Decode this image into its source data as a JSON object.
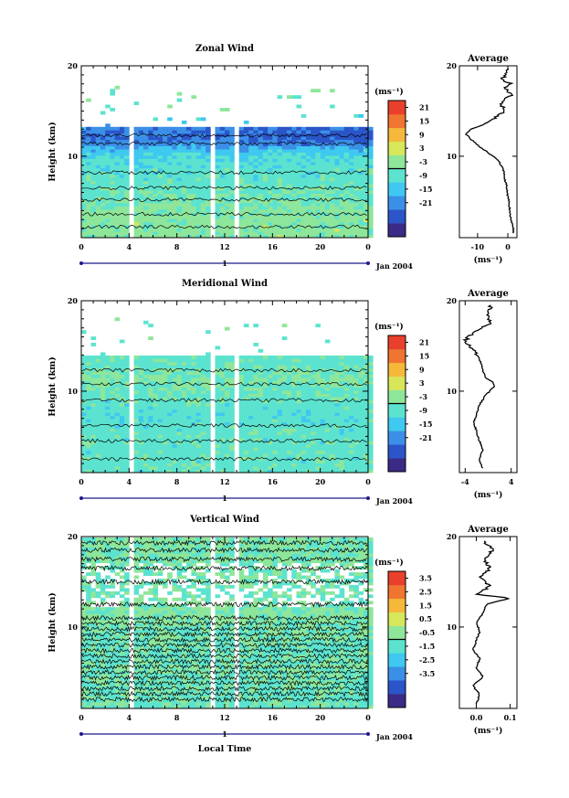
{
  "chart_data": [
    {
      "type": "heatmap",
      "title": "Zonal Wind",
      "ylabel": "Height (km)",
      "xticks": [
        "0",
        "4",
        "8",
        "12",
        "16",
        "20",
        "0"
      ],
      "yticks": [
        "20",
        "10"
      ],
      "ylim": [
        1,
        20
      ],
      "xlim": [
        0,
        24
      ],
      "date_marker": "1",
      "date_label": "Jan 2004",
      "colorbar": {
        "unit": "(ms⁻¹)",
        "ticks": [
          "21",
          "15",
          "9",
          "3",
          "-3",
          "-9",
          "-15",
          "-21"
        ],
        "range": [
          -24,
          24
        ]
      },
      "data_gaps_hours": [
        4.2,
        11.0,
        12.9
      ],
      "profile_by_height": [
        {
          "h": 3,
          "v": 2
        },
        {
          "h": 5,
          "v": 0
        },
        {
          "h": 7,
          "v": -2
        },
        {
          "h": 9,
          "v": -3
        },
        {
          "h": 10,
          "v": -5
        },
        {
          "h": 11,
          "v": -10
        },
        {
          "h": 12,
          "v": -14
        },
        {
          "h": 13,
          "v": -12
        },
        {
          "h": 14,
          "v": -4
        },
        {
          "h": 15,
          "v": 0
        },
        {
          "h": 17,
          "v": 0
        },
        {
          "h": 18,
          "v": -2
        },
        {
          "h": 19,
          "v": 0
        }
      ],
      "average": {
        "title": "Average",
        "xticks": [
          "-10",
          "0"
        ],
        "xunit": "(ms⁻¹)",
        "yticks": [
          "20",
          "10"
        ],
        "xlim": [
          -16,
          3
        ],
        "profile": [
          {
            "h": 1.5,
            "v": 2.0
          },
          {
            "h": 2.5,
            "v": 1.5
          },
          {
            "h": 3.5,
            "v": 0.8
          },
          {
            "h": 4.5,
            "v": 0.5
          },
          {
            "h": 5.5,
            "v": 0.0
          },
          {
            "h": 6.5,
            "v": -0.3
          },
          {
            "h": 7.5,
            "v": -1.0
          },
          {
            "h": 8.5,
            "v": -1.5
          },
          {
            "h": 9.5,
            "v": -3.0
          },
          {
            "h": 10.5,
            "v": -7.0
          },
          {
            "h": 11.5,
            "v": -11.0
          },
          {
            "h": 12.5,
            "v": -14.0
          },
          {
            "h": 13.0,
            "v": -12.0
          },
          {
            "h": 13.5,
            "v": -8.0
          },
          {
            "h": 14.5,
            "v": -3.0
          },
          {
            "h": 15.0,
            "v": -1.0
          },
          {
            "h": 16.0,
            "v": -2.5
          },
          {
            "h": 16.8,
            "v": 1.5
          },
          {
            "h": 17.5,
            "v": -1.0
          },
          {
            "h": 18.0,
            "v": 1.0
          },
          {
            "h": 18.5,
            "v": -2.0
          },
          {
            "h": 19.2,
            "v": -0.5
          },
          {
            "h": 19.8,
            "v": 0.5
          }
        ]
      }
    },
    {
      "type": "heatmap",
      "title": "Meridional Wind",
      "ylabel": "Height (km)",
      "xticks": [
        "0",
        "4",
        "8",
        "12",
        "16",
        "20",
        "0"
      ],
      "yticks": [
        "20",
        "10"
      ],
      "ylim": [
        1,
        20
      ],
      "xlim": [
        0,
        24
      ],
      "date_marker": "1",
      "date_label": "Jan 2004",
      "colorbar": {
        "unit": "(ms⁻¹)",
        "ticks": [
          "21",
          "15",
          "9",
          "3",
          "-3",
          "-9",
          "-15",
          "-21"
        ],
        "range": [
          -24,
          24
        ]
      },
      "data_gaps_hours": [
        4.2,
        11.0,
        12.9
      ],
      "profile_by_height": [
        {
          "h": 3,
          "v": -2
        },
        {
          "h": 5,
          "v": -2
        },
        {
          "h": 7,
          "v": -3
        },
        {
          "h": 9,
          "v": -2
        },
        {
          "h": 10,
          "v": -1
        },
        {
          "h": 11,
          "v": 1
        },
        {
          "h": 12,
          "v": -1
        },
        {
          "h": 13,
          "v": -2
        },
        {
          "h": 14,
          "v": -2
        },
        {
          "h": 15,
          "v": -3
        },
        {
          "h": 17,
          "v": 0
        },
        {
          "h": 18,
          "v": -1
        },
        {
          "h": 19,
          "v": 0
        }
      ],
      "average": {
        "title": "Average",
        "xticks": [
          "-4",
          "4"
        ],
        "xunit": "(ms⁻¹)",
        "yticks": [
          "20",
          "10"
        ],
        "xlim": [
          -5,
          5
        ],
        "profile": [
          {
            "h": 1.5,
            "v": -1.0
          },
          {
            "h": 2.5,
            "v": -1.5
          },
          {
            "h": 3.5,
            "v": -1.0
          },
          {
            "h": 4.5,
            "v": -1.5
          },
          {
            "h": 5.5,
            "v": -2.0
          },
          {
            "h": 6.5,
            "v": -2.5
          },
          {
            "h": 7.5,
            "v": -2.0
          },
          {
            "h": 8.5,
            "v": -1.5
          },
          {
            "h": 9.5,
            "v": -0.5
          },
          {
            "h": 10.5,
            "v": 1.0
          },
          {
            "h": 11.0,
            "v": 0.8
          },
          {
            "h": 11.5,
            "v": -0.5
          },
          {
            "h": 12.5,
            "v": -1.0
          },
          {
            "h": 13.5,
            "v": -1.5
          },
          {
            "h": 14.5,
            "v": -2.5
          },
          {
            "h": 15.0,
            "v": -3.0
          },
          {
            "h": 15.5,
            "v": -4.0
          },
          {
            "h": 16.0,
            "v": -3.5
          },
          {
            "h": 17.0,
            "v": -1.0
          },
          {
            "h": 17.5,
            "v": 0.5
          },
          {
            "h": 18.5,
            "v": 0.0
          },
          {
            "h": 19.5,
            "v": 0.5
          }
        ]
      }
    },
    {
      "type": "heatmap",
      "title": "Vertical Wind",
      "ylabel": "Height (km)",
      "xlabel": "Local Time",
      "xticks": [
        "0",
        "4",
        "8",
        "12",
        "16",
        "20",
        "0"
      ],
      "yticks": [
        "20",
        "10"
      ],
      "ylim": [
        1,
        20
      ],
      "xlim": [
        0,
        24
      ],
      "date_marker": "1",
      "date_label": "Jan 2004",
      "colorbar": {
        "unit": "(ms⁻¹)",
        "ticks": [
          "3.5",
          "2.5",
          "1.5",
          "0.5",
          "-0.5",
          "-1.5",
          "-2.5",
          "-3.5"
        ],
        "range": [
          -4,
          4
        ]
      },
      "data_gaps_hours": [
        4.2,
        11.0,
        12.9
      ],
      "profile_by_height": [
        {
          "h": 3,
          "v": -0.2
        },
        {
          "h": 5,
          "v": 0
        },
        {
          "h": 7,
          "v": -0.2
        },
        {
          "h": 9,
          "v": 0
        },
        {
          "h": 10,
          "v": 0.1
        },
        {
          "h": 11,
          "v": 0.2
        },
        {
          "h": 12,
          "v": 0.1
        },
        {
          "h": 13,
          "v": 0
        },
        {
          "h": 14,
          "v": -0.1
        },
        {
          "h": 15,
          "v": 0
        },
        {
          "h": 17,
          "v": 0.1
        },
        {
          "h": 18,
          "v": 0
        },
        {
          "h": 19,
          "v": 0.1
        }
      ],
      "average": {
        "title": "Average",
        "xticks": [
          "0.0",
          "0.1"
        ],
        "xunit": "(ms⁻¹)",
        "yticks": [
          "20",
          "10"
        ],
        "xlim": [
          -0.05,
          0.12
        ],
        "profile": [
          {
            "h": 1.5,
            "v": 0.0
          },
          {
            "h": 2.5,
            "v": 0.01
          },
          {
            "h": 3.5,
            "v": -0.01
          },
          {
            "h": 4.5,
            "v": 0.02
          },
          {
            "h": 5.5,
            "v": 0.0
          },
          {
            "h": 6.5,
            "v": 0.01
          },
          {
            "h": 7.5,
            "v": -0.01
          },
          {
            "h": 8.5,
            "v": 0.0
          },
          {
            "h": 9.5,
            "v": 0.01
          },
          {
            "h": 10.5,
            "v": 0.0
          },
          {
            "h": 11.5,
            "v": 0.02
          },
          {
            "h": 12.5,
            "v": 0.03
          },
          {
            "h": 13.2,
            "v": 0.1
          },
          {
            "h": 13.6,
            "v": 0.0
          },
          {
            "h": 14.5,
            "v": 0.04
          },
          {
            "h": 15.5,
            "v": 0.01
          },
          {
            "h": 16.5,
            "v": 0.04
          },
          {
            "h": 17.5,
            "v": 0.02
          },
          {
            "h": 18.5,
            "v": 0.05
          },
          {
            "h": 19.5,
            "v": 0.02
          }
        ]
      }
    }
  ]
}
